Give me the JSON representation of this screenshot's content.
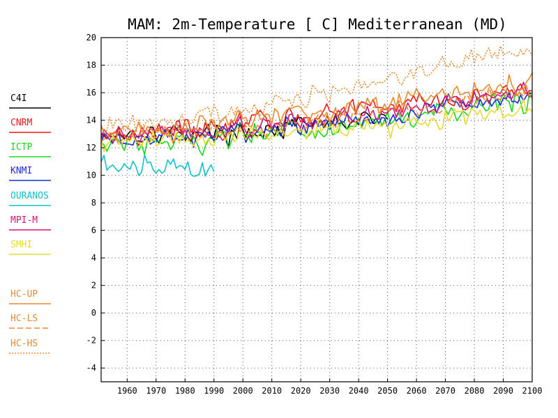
{
  "chart_data": {
    "type": "line",
    "title": "MAM: 2m-Temperature [  C] Mediterranean (MD)",
    "xlabel": "",
    "ylabel": "",
    "xlim": [
      1951,
      2100
    ],
    "ylim": [
      -5,
      20
    ],
    "x_ticks": [
      1960,
      1970,
      1980,
      1990,
      2000,
      2010,
      2020,
      2030,
      2040,
      2050,
      2060,
      2070,
      2080,
      2090,
      2100
    ],
    "y_ticks": [
      -4,
      -2,
      0,
      2,
      4,
      6,
      8,
      10,
      12,
      14,
      16,
      18,
      20
    ],
    "grid": true,
    "legend_position": "left",
    "series": [
      {
        "name": "C4I",
        "color": "#000000",
        "dash": "solid",
        "x_range": [
          1951,
          2050
        ],
        "noise": 0.55,
        "trend": [
          [
            1951,
            13.0
          ],
          [
            2000,
            13.1
          ],
          [
            2050,
            14.2
          ]
        ]
      },
      {
        "name": "CNRM",
        "color": "#e8161a",
        "dash": "solid",
        "x_range": [
          1951,
          2100
        ],
        "noise": 0.55,
        "trend": [
          [
            1951,
            13.0
          ],
          [
            2000,
            13.8
          ],
          [
            2050,
            15.0
          ],
          [
            2100,
            16.3
          ]
        ]
      },
      {
        "name": "ICTP",
        "color": "#18d81a",
        "dash": "solid",
        "x_range": [
          1951,
          2100
        ],
        "noise": 0.7,
        "trend": [
          [
            1951,
            12.3
          ],
          [
            2000,
            12.8
          ],
          [
            2050,
            13.9
          ],
          [
            2100,
            15.4
          ]
        ]
      },
      {
        "name": "KNMI",
        "color": "#1c2bd9",
        "dash": "solid",
        "x_range": [
          1951,
          2100
        ],
        "noise": 0.55,
        "trend": [
          [
            1951,
            12.5
          ],
          [
            2000,
            13.0
          ],
          [
            2050,
            14.3
          ],
          [
            2100,
            15.9
          ]
        ]
      },
      {
        "name": "OURANOS",
        "color": "#11c0c8",
        "dash": "solid",
        "x_range": [
          1951,
          1990
        ],
        "noise": 0.6,
        "trend": [
          [
            1951,
            10.8
          ],
          [
            1970,
            10.6
          ],
          [
            1990,
            10.6
          ]
        ]
      },
      {
        "name": "MPI-M",
        "color": "#d0147a",
        "dash": "solid",
        "x_range": [
          1951,
          2100
        ],
        "noise": 0.55,
        "trend": [
          [
            1951,
            12.8
          ],
          [
            2000,
            13.3
          ],
          [
            2050,
            14.6
          ],
          [
            2100,
            16.3
          ]
        ]
      },
      {
        "name": "SMHI",
        "color": "#e8da33",
        "dash": "solid",
        "x_range": [
          1951,
          2100
        ],
        "noise": 0.55,
        "trend": [
          [
            1951,
            12.4
          ],
          [
            2000,
            12.8
          ],
          [
            2050,
            13.6
          ],
          [
            2100,
            14.8
          ]
        ]
      },
      {
        "name": "HC-UP",
        "color": "#e8892f",
        "dash": "solid",
        "x_range": [
          1951,
          2100
        ],
        "noise": 0.6,
        "trend": [
          [
            1951,
            13.0
          ],
          [
            2000,
            13.8
          ],
          [
            2050,
            15.4
          ],
          [
            2100,
            16.8
          ]
        ]
      },
      {
        "name": "HC-LS",
        "color": "#e8892f",
        "dash": "dashed",
        "x_range": [
          1951,
          2100
        ],
        "noise": 0.55,
        "trend": [
          [
            1951,
            12.8
          ],
          [
            2000,
            13.3
          ],
          [
            2050,
            14.6
          ],
          [
            2100,
            16.0
          ]
        ]
      },
      {
        "name": "HC-HS",
        "color": "#e8892f",
        "dash": "dotted",
        "x_range": [
          1951,
          2100
        ],
        "noise": 0.6,
        "trend": [
          [
            1951,
            13.4
          ],
          [
            2000,
            14.6
          ],
          [
            2050,
            17.0
          ],
          [
            2090,
            19.2
          ],
          [
            2100,
            18.5
          ]
        ]
      }
    ]
  }
}
